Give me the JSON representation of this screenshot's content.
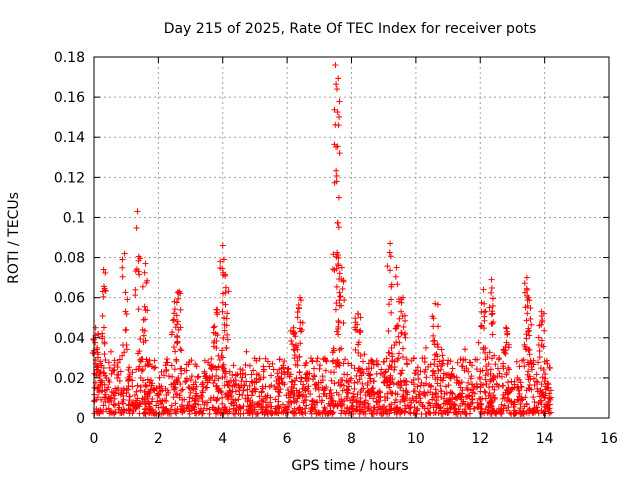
{
  "chart_data": {
    "type": "scatter",
    "title": "Day 215 of 2025, Rate Of TEC Index for receiver pots",
    "xlabel": "GPS time / hours",
    "ylabel": "ROTI / TECUs",
    "xlim": [
      0,
      16
    ],
    "ylim": [
      0,
      0.18
    ],
    "x_ticks": [
      0,
      2,
      4,
      6,
      8,
      10,
      12,
      14,
      16
    ],
    "y_ticks": [
      0,
      0.02,
      0.04,
      0.06,
      0.08,
      0.1,
      0.12,
      0.14,
      0.16,
      0.18
    ],
    "x_tick_labels": [
      "0",
      "2",
      "4",
      "6",
      "8",
      "10",
      "12",
      "14",
      "16"
    ],
    "y_tick_labels": [
      "0",
      "0.02",
      "0.04",
      "0.06",
      "0.08",
      "0.1",
      "0.12",
      "0.14",
      "0.16",
      "0.18"
    ],
    "grid": true,
    "marker": "+",
    "color": "#ff0000",
    "data_range_x": [
      0,
      14.2
    ],
    "baseline_band": [
      0.002,
      0.03
    ],
    "bursts": [
      {
        "x": 0.05,
        "peak": 0.045
      },
      {
        "x": 0.3,
        "peak": 0.074
      },
      {
        "x": 0.95,
        "peak": 0.082
      },
      {
        "x": 1.35,
        "peak": 0.103
      },
      {
        "x": 1.6,
        "peak": 0.077
      },
      {
        "x": 2.5,
        "peak": 0.058
      },
      {
        "x": 2.65,
        "peak": 0.063
      },
      {
        "x": 3.8,
        "peak": 0.054
      },
      {
        "x": 4.0,
        "peak": 0.086
      },
      {
        "x": 4.1,
        "peak": 0.065
      },
      {
        "x": 6.2,
        "peak": 0.045
      },
      {
        "x": 6.4,
        "peak": 0.06
      },
      {
        "x": 7.5,
        "peak": 0.176
      },
      {
        "x": 7.55,
        "peak": 0.164
      },
      {
        "x": 7.6,
        "peak": 0.146
      },
      {
        "x": 7.7,
        "peak": 0.075
      },
      {
        "x": 8.2,
        "peak": 0.052
      },
      {
        "x": 9.2,
        "peak": 0.087
      },
      {
        "x": 9.4,
        "peak": 0.075
      },
      {
        "x": 9.6,
        "peak": 0.06
      },
      {
        "x": 10.6,
        "peak": 0.057
      },
      {
        "x": 12.1,
        "peak": 0.064
      },
      {
        "x": 12.35,
        "peak": 0.069
      },
      {
        "x": 12.8,
        "peak": 0.045
      },
      {
        "x": 13.45,
        "peak": 0.07
      },
      {
        "x": 13.5,
        "peak": 0.06
      },
      {
        "x": 13.9,
        "peak": 0.053
      }
    ]
  }
}
